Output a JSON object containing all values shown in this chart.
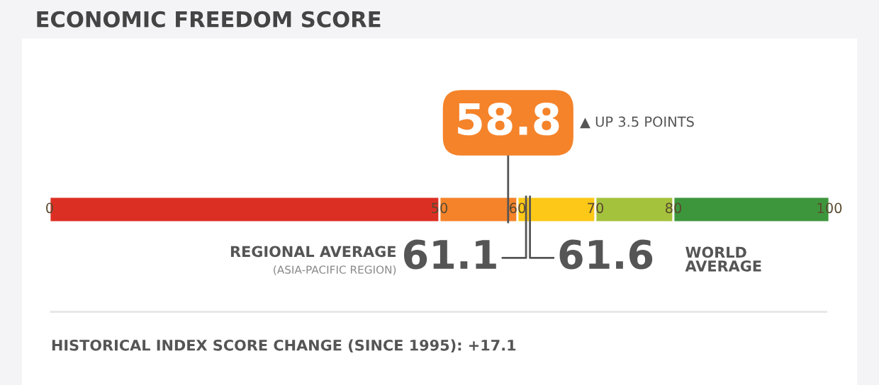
{
  "chart_data": {
    "type": "bar",
    "orientation": "horizontal",
    "stacked": true,
    "title": "ECONOMIC FREEDOM SCORE",
    "categories": [
      null
    ],
    "series": [
      {
        "color": "#dc2f23",
        "values": [
          50
        ]
      },
      {
        "color": "#f5832a",
        "values": [
          10
        ]
      },
      {
        "color": "#fdc817",
        "values": [
          10
        ]
      },
      {
        "color": "#a5c23c",
        "values": [
          10
        ]
      },
      {
        "color": "#3e963c",
        "values": [
          20
        ]
      }
    ],
    "xlim": [
      0,
      100
    ],
    "xticks": [
      0,
      50,
      60,
      70,
      80,
      100
    ],
    "grid": false,
    "legend": false,
    "ref_lines": [
      {
        "axis": "x",
        "value": 58.8,
        "label": "58.8",
        "color": "#555555"
      },
      {
        "axis": "x",
        "value": 61.1,
        "label": "61.1",
        "color": "#555555"
      },
      {
        "axis": "x",
        "value": 61.6,
        "label": "61.6",
        "color": "#555555"
      }
    ],
    "annotations": [
      "▲ UP 3.5 POINTS",
      "REGIONAL AVERAGE",
      "(ASIA-PACIFIC REGION)",
      "WORLD\nAVERAGE",
      "HISTORICAL INDEX SCORE CHANGE (SINCE 1995): +17.1"
    ]
  }
}
